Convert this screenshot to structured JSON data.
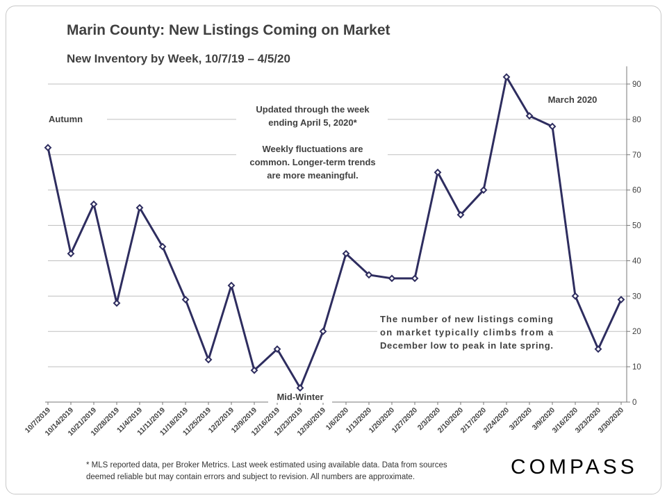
{
  "chart_data": {
    "type": "line",
    "title": "Marin County: New Listings Coming on Market",
    "subtitle": "New Inventory by Week, 10/7/19 – 4/5/20",
    "categories": [
      "10/7/2019",
      "10/14/2019",
      "10/21/2019",
      "10/28/2019",
      "11/4/2019",
      "11/11/2019",
      "11/18/2019",
      "11/25/2019",
      "12/2/2019",
      "12/9/2019",
      "12/16/2019",
      "12/23/2019",
      "12/30/2019",
      "1/6/2020",
      "1/13/2020",
      "1/20/2020",
      "1/27/2020",
      "2/3/2020",
      "2/10/2020",
      "2/17/2020",
      "2/24/2020",
      "3/2/2020",
      "3/9/2020",
      "3/16/2020",
      "3/23/2020",
      "3/30/2020"
    ],
    "series": [
      {
        "values": [
          72,
          42,
          56,
          28,
          55,
          44,
          29,
          12,
          33,
          9,
          15,
          4,
          20,
          42,
          36,
          35,
          35,
          65,
          53,
          60,
          92,
          81,
          78,
          30,
          15,
          29
        ]
      }
    ],
    "ylim": [
      0,
      95
    ],
    "yticks": [
      0,
      10,
      20,
      30,
      40,
      50,
      60,
      70,
      80,
      90
    ],
    "y_axis_side": "right",
    "grid": true,
    "line_color": "#2e2d5f",
    "grid_color": "#bfbfbf",
    "annotations": {
      "autumn": "Autumn",
      "midwinter": "Mid-Winter",
      "march": "March 2020",
      "updated": [
        "Updated through the week",
        "ending April 5, 2020*"
      ],
      "fluctuations": [
        "Weekly fluctuations are",
        "common. Longer-term trends",
        "are more meaningful."
      ],
      "trend": [
        "The number of new listings coming",
        "on market typically climbs from a",
        "December low to peak in late spring."
      ]
    }
  },
  "footnote": [
    "* MLS reported data, per Broker Metrics. Last week estimated using available data. Data from sources",
    "deemed reliable but may contain errors and subject to revision. All numbers are approximate."
  ],
  "logo": "COMPASS"
}
